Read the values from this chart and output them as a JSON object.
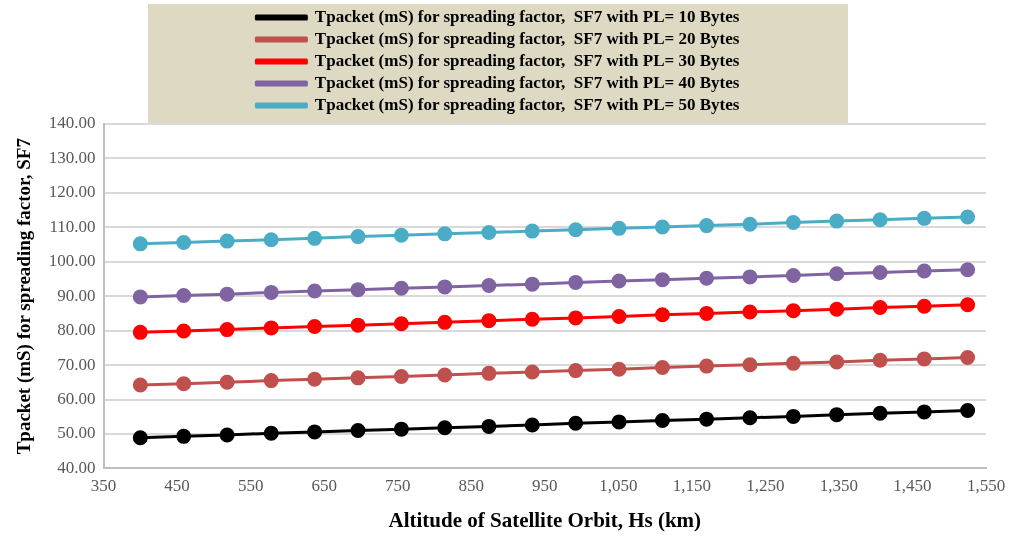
{
  "chart_data": {
    "type": "line",
    "xlabel": "Altitude of Satellite Orbit, Hs (km)",
    "ylabel": "Tpacket (mS) for spreading factor, SF7",
    "x": [
      400,
      459,
      518,
      578,
      637,
      696,
      755,
      814,
      874,
      933,
      992,
      1051,
      1110,
      1170,
      1229,
      1288,
      1347,
      1406,
      1466,
      1525
    ],
    "series": [
      {
        "name": "Tpacket (mS) for spreading factor,  SF7 with PL= 10 Bytes",
        "color": "#000000",
        "values": [
          48.9,
          49.3,
          49.7,
          50.2,
          50.6,
          51.0,
          51.4,
          51.8,
          52.2,
          52.6,
          53.1,
          53.5,
          53.9,
          54.3,
          54.7,
          55.1,
          55.6,
          56.0,
          56.4,
          56.8
        ]
      },
      {
        "name": "Tpacket (mS) for spreading factor,  SF7 with PL= 20 Bytes",
        "color": "#c0504d",
        "values": [
          64.2,
          64.6,
          65.0,
          65.5,
          65.9,
          66.3,
          66.7,
          67.1,
          67.6,
          68.0,
          68.4,
          68.8,
          69.3,
          69.7,
          70.1,
          70.5,
          70.9,
          71.4,
          71.8,
          72.2
        ]
      },
      {
        "name": "Tpacket (mS) for spreading factor,  SF7 with PL= 30 Bytes",
        "color": "#ff0000",
        "values": [
          79.5,
          79.9,
          80.3,
          80.8,
          81.2,
          81.6,
          82.0,
          82.4,
          82.9,
          83.3,
          83.7,
          84.1,
          84.6,
          85.0,
          85.4,
          85.8,
          86.2,
          86.7,
          87.1,
          87.5
        ]
      },
      {
        "name": "Tpacket (mS) for spreading factor,  SF7 with PL= 40 Bytes",
        "color": "#8064a2",
        "values": [
          89.8,
          90.2,
          90.6,
          91.1,
          91.5,
          91.9,
          92.3,
          92.7,
          93.1,
          93.5,
          94.0,
          94.4,
          94.8,
          95.2,
          95.6,
          96.0,
          96.5,
          96.9,
          97.3,
          97.7
        ]
      },
      {
        "name": "Tpacket (mS) for spreading factor,  SF7 with PL= 50 Bytes",
        "color": "#4bacc6",
        "values": [
          105.2,
          105.6,
          106.0,
          106.4,
          106.8,
          107.3,
          107.7,
          108.1,
          108.5,
          108.9,
          109.3,
          109.7,
          110.1,
          110.5,
          110.9,
          111.4,
          111.8,
          112.2,
          112.6,
          113.0
        ]
      }
    ],
    "xlim": [
      350,
      1550
    ],
    "xticks": [
      350,
      450,
      550,
      650,
      750,
      850,
      950,
      {
        "value": 1050,
        "label": "1,050"
      },
      {
        "value": 1150,
        "label": "1,150"
      },
      {
        "value": 1250,
        "label": "1,250"
      },
      {
        "value": 1350,
        "label": "1,350"
      },
      {
        "value": 1450,
        "label": "1,450"
      },
      {
        "value": 1550,
        "label": "1,550"
      }
    ],
    "ylim": [
      40,
      140
    ],
    "yticks": [
      {
        "value": 40,
        "label": "40.00"
      },
      {
        "value": 50,
        "label": "50.00"
      },
      {
        "value": 60,
        "label": "60.00"
      },
      {
        "value": 70,
        "label": "70.00"
      },
      {
        "value": 80,
        "label": "80.00"
      },
      {
        "value": 90,
        "label": "90.00"
      },
      {
        "value": 100,
        "label": "100.00"
      },
      {
        "value": 110,
        "label": "110.00"
      },
      {
        "value": 120,
        "label": "120.00"
      },
      {
        "value": 130,
        "label": "130.00"
      },
      {
        "value": 140,
        "label": "140.00"
      }
    ],
    "grid": "y",
    "legend": "top",
    "marker": "circle",
    "line_style": "solid"
  }
}
